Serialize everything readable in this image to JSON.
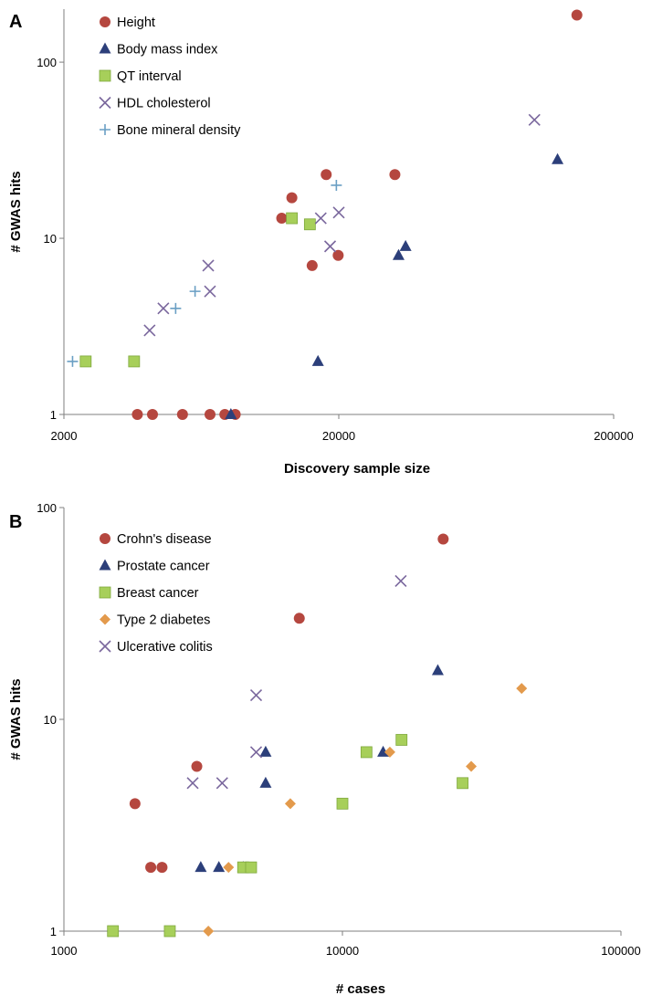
{
  "chart_data": [
    {
      "panel_label": "A",
      "type": "scatter",
      "xscale": "log",
      "yscale": "log",
      "xlim": [
        2000,
        200000
      ],
      "ylim": [
        1,
        200
      ],
      "xticks": [
        "2000",
        "20000",
        "200000"
      ],
      "yticks": [
        "1",
        "10",
        "100"
      ],
      "xlabel": "Discovery sample size",
      "ylabel": "# GWAS hits",
      "legend_position": "top-left",
      "series": [
        {
          "name": "Height",
          "marker": "circle",
          "color": "#b5473f",
          "points": [
            [
              3700,
              1
            ],
            [
              4200,
              1
            ],
            [
              5400,
              1
            ],
            [
              6800,
              1
            ],
            [
              7700,
              1
            ],
            [
              8400,
              1
            ],
            [
              12400,
              13
            ],
            [
              13500,
              17
            ],
            [
              16000,
              7
            ],
            [
              18000,
              23
            ],
            [
              19900,
              8
            ],
            [
              32000,
              23
            ],
            [
              147000,
              185
            ]
          ]
        },
        {
          "name": "Body mass index",
          "marker": "triangle",
          "color": "#2c3f7a",
          "points": [
            [
              8100,
              1
            ],
            [
              16800,
              2
            ],
            [
              33000,
              8
            ],
            [
              35000,
              9
            ],
            [
              125000,
              28
            ]
          ]
        },
        {
          "name": "QT interval",
          "marker": "square",
          "color": "#a7cf5a",
          "points": [
            [
              2400,
              2
            ],
            [
              3600,
              2
            ],
            [
              13500,
              13
            ],
            [
              15700,
              12
            ]
          ]
        },
        {
          "name": "HDL cholesterol",
          "marker": "x",
          "color": "#7a679d",
          "points": [
            [
              4100,
              3
            ],
            [
              4600,
              4
            ],
            [
              6700,
              7
            ],
            [
              6800,
              5
            ],
            [
              17200,
              13
            ],
            [
              18600,
              9
            ],
            [
              20000,
              14
            ],
            [
              103000,
              47
            ]
          ]
        },
        {
          "name": "Bone mineral density",
          "marker": "plus",
          "color": "#6a9fc4",
          "points": [
            [
              2150,
              2
            ],
            [
              5100,
              4
            ],
            [
              6000,
              5
            ],
            [
              19600,
              20
            ]
          ]
        }
      ]
    },
    {
      "panel_label": "B",
      "type": "scatter",
      "xscale": "log",
      "yscale": "log",
      "xlim": [
        1000,
        100000
      ],
      "ylim": [
        1,
        100
      ],
      "xticks": [
        "1000",
        "10000",
        "100000"
      ],
      "yticks": [
        "1",
        "10",
        "100"
      ],
      "xlabel": "# cases",
      "ylabel": "# GWAS hits",
      "legend_position": "top-left",
      "series": [
        {
          "name": "Crohn's disease",
          "marker": "circle",
          "color": "#b5473f",
          "points": [
            [
              1800,
              4
            ],
            [
              2050,
              2
            ],
            [
              2250,
              2
            ],
            [
              3000,
              6
            ],
            [
              7000,
              30
            ],
            [
              23000,
              71
            ]
          ]
        },
        {
          "name": "Prostate cancer",
          "marker": "triangle",
          "color": "#2c3f7a",
          "points": [
            [
              3100,
              2
            ],
            [
              3600,
              2
            ],
            [
              4400,
              2
            ],
            [
              5300,
              5
            ],
            [
              5300,
              7
            ],
            [
              14000,
              7
            ],
            [
              22000,
              17
            ]
          ]
        },
        {
          "name": "Breast cancer",
          "marker": "square",
          "color": "#a7cf5a",
          "points": [
            [
              1500,
              1
            ],
            [
              2400,
              1
            ],
            [
              4400,
              2
            ],
            [
              4700,
              2
            ],
            [
              10000,
              4
            ],
            [
              12200,
              7
            ],
            [
              16300,
              8
            ],
            [
              27000,
              5
            ]
          ]
        },
        {
          "name": "Type 2 diabetes",
          "marker": "diamond",
          "color": "#e39a4c",
          "points": [
            [
              3300,
              1
            ],
            [
              3900,
              2
            ],
            [
              6500,
              4
            ],
            [
              14800,
              7
            ],
            [
              29000,
              6
            ],
            [
              44000,
              14
            ]
          ]
        },
        {
          "name": "Ulcerative colitis",
          "marker": "x",
          "color": "#7a679d",
          "points": [
            [
              2900,
              5
            ],
            [
              3700,
              5
            ],
            [
              4900,
              7
            ],
            [
              4900,
              13
            ],
            [
              16200,
              45
            ]
          ]
        }
      ]
    }
  ]
}
